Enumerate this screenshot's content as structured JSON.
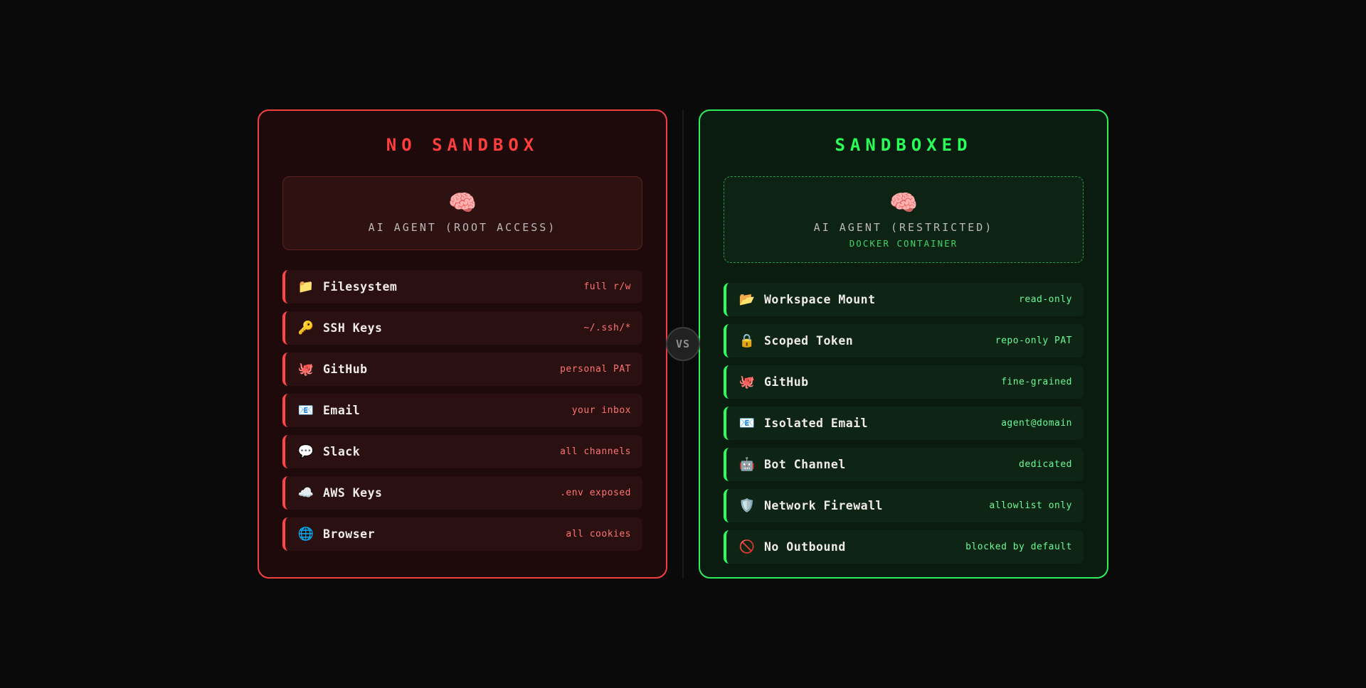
{
  "theme": {
    "page_bg": "#0a0a0a",
    "danger_border": "#f54040",
    "danger_title": "#ff3e3e",
    "danger_accent": "#ff4545",
    "danger_value_text": "#ff7272",
    "safe_border": "#2bf05c",
    "safe_title": "#28ff57",
    "safe_accent": "#2bff5e",
    "safe_value_text": "#67fa96",
    "docker_text": "#3ed46a",
    "agent_name_text": "#bdb8b8",
    "vs_circle_bg": "#212121",
    "vs_text": "#8f8f8f"
  },
  "divider": {
    "vs_label": "VS"
  },
  "left_panel": {
    "title": "NO SANDBOX",
    "agent": {
      "icon": "🧠",
      "name": "AI AGENT (ROOT ACCESS)"
    },
    "items": [
      {
        "icon": "📁",
        "label": "Filesystem",
        "value": "full r/w"
      },
      {
        "icon": "🔑",
        "label": "SSH Keys",
        "value": "~/.ssh/*"
      },
      {
        "icon": "🐙",
        "label": "GitHub",
        "value": "personal PAT"
      },
      {
        "icon": "📧",
        "label": "Email",
        "value": "your inbox"
      },
      {
        "icon": "💬",
        "label": "Slack",
        "value": "all channels"
      },
      {
        "icon": "☁️",
        "label": "AWS Keys",
        "value": ".env exposed"
      },
      {
        "icon": "🌐",
        "label": "Browser",
        "value": "all cookies"
      }
    ]
  },
  "right_panel": {
    "title": "SANDBOXED",
    "agent": {
      "icon": "🧠",
      "name": "AI AGENT (RESTRICTED)",
      "sub": "DOCKER CONTAINER"
    },
    "items": [
      {
        "icon": "📂",
        "label": "Workspace Mount",
        "value": "read-only"
      },
      {
        "icon": "🔒",
        "label": "Scoped Token",
        "value": "repo-only PAT"
      },
      {
        "icon": "🐙",
        "label": "GitHub",
        "value": "fine-grained"
      },
      {
        "icon": "📧",
        "label": "Isolated Email",
        "value": "agent@domain"
      },
      {
        "icon": "🤖",
        "label": "Bot Channel",
        "value": "dedicated"
      },
      {
        "icon": "🛡️",
        "label": "Network Firewall",
        "value": "allowlist only"
      },
      {
        "icon": "🚫",
        "label": "No Outbound",
        "value": "blocked by default"
      }
    ]
  }
}
